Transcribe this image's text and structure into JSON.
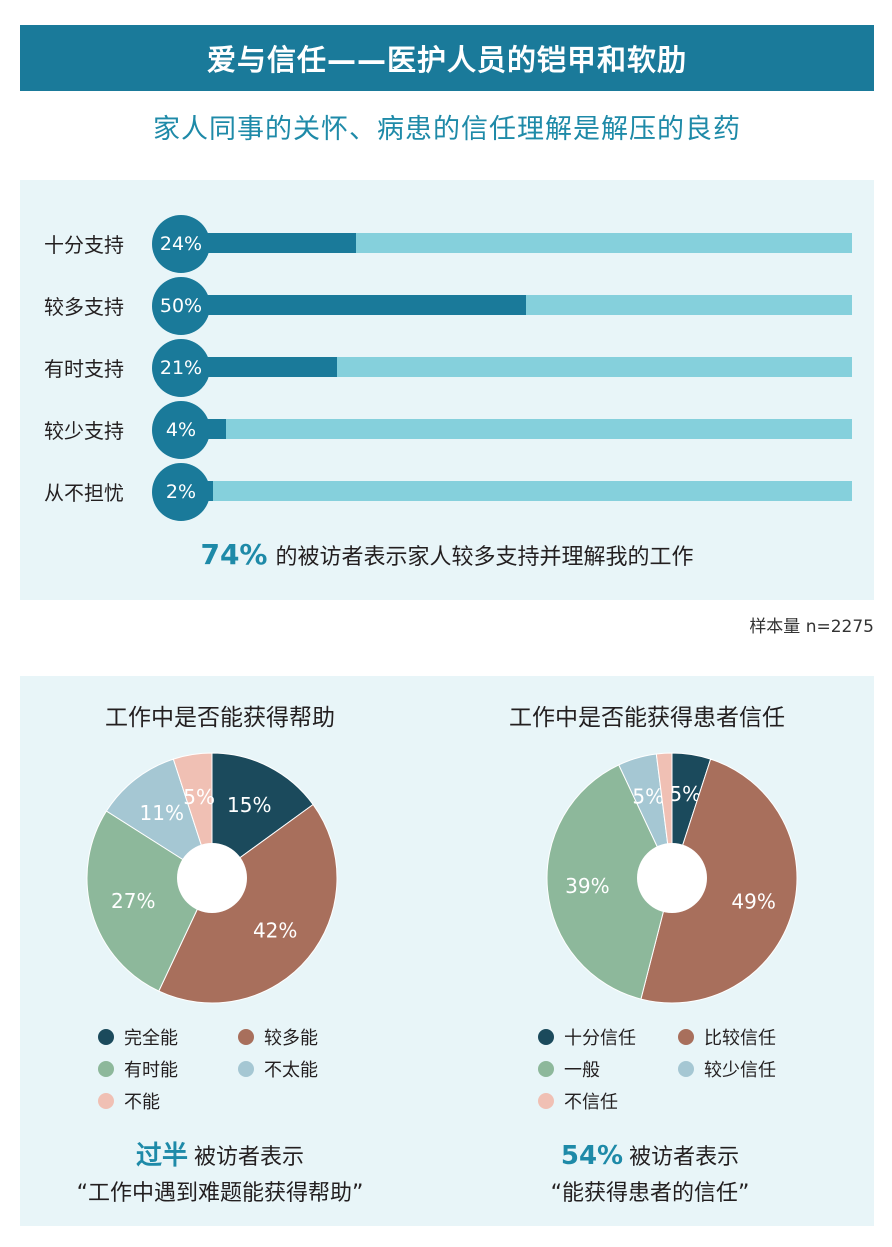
{
  "title": "爱与信任——医护人员的铠甲和软肋",
  "subtitle": "家人同事的关怀、病患的信任理解是解压的良药",
  "colors": {
    "dark_teal": "#1a7a9a",
    "light_teal": "#85d0dc",
    "navy": "#1b4a5c",
    "brown": "#a86f5c",
    "green": "#8db89b",
    "light_blue": "#a5c7d3",
    "pink": "#f0c0b4"
  },
  "chart_data": [
    {
      "type": "bar",
      "categories": [
        "十分支持",
        "较多支持",
        "有时支持",
        "较少支持",
        "从不担忧"
      ],
      "values": [
        24,
        50,
        21,
        4,
        2
      ],
      "value_labels": [
        "24%",
        "50%",
        "21%",
        "4%",
        "2%"
      ],
      "xlim": [
        0,
        100
      ],
      "summary_highlight": "74%",
      "summary_text": "的被访者表示家人较多支持并理解我的工作",
      "note": "样本量 n=2275"
    },
    {
      "type": "pie",
      "title": "工作中是否能获得帮助",
      "slices": [
        {
          "label": "完全能",
          "value": 15,
          "text": "15%",
          "color": "#1b4a5c"
        },
        {
          "label": "较多能",
          "value": 42,
          "text": "42%",
          "color": "#a86f5c"
        },
        {
          "label": "有时能",
          "value": 27,
          "text": "27%",
          "color": "#8db89b"
        },
        {
          "label": "不太能",
          "value": 11,
          "text": "11%",
          "color": "#a5c7d3"
        },
        {
          "label": "不能",
          "value": 5,
          "text": "5%",
          "color": "#f0c0b4"
        }
      ],
      "summary_highlight": "过半",
      "summary_line1": "被访者表示",
      "summary_line2": "“工作中遇到难题能获得帮助”"
    },
    {
      "type": "pie",
      "title": "工作中是否能获得患者信任",
      "slices": [
        {
          "label": "十分信任",
          "value": 5,
          "text": "5%",
          "color": "#1b4a5c"
        },
        {
          "label": "比较信任",
          "value": 49,
          "text": "49%",
          "color": "#a86f5c"
        },
        {
          "label": "一般",
          "value": 39,
          "text": "39%",
          "color": "#8db89b"
        },
        {
          "label": "较少信任",
          "value": 5,
          "text": "5%",
          "color": "#a5c7d3"
        },
        {
          "label": "不信任",
          "value": 2,
          "text": "2%",
          "color": "#f0c0b4"
        }
      ],
      "summary_highlight": "54%",
      "summary_line1": "被访者表示",
      "summary_line2": "“能获得患者的信任”"
    }
  ]
}
